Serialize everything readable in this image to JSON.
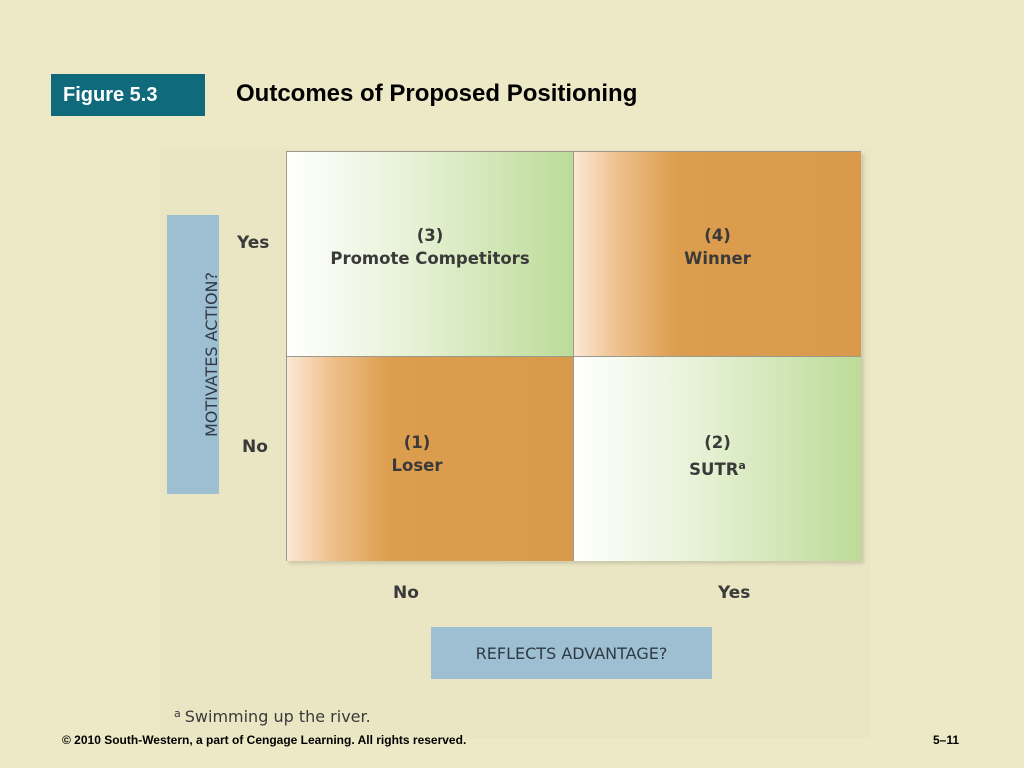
{
  "header": {
    "figure_label": "Figure 5.3",
    "title": "Outcomes of Proposed Positioning"
  },
  "matrix": {
    "y_axis_label": "MOTIVATES ACTION?",
    "y_ticks": {
      "top": "Yes",
      "bottom": "No"
    },
    "x_axis_label": "REFLECTS ADVANTAGE?",
    "x_ticks": {
      "left": "No",
      "right": "Yes"
    },
    "quadrants": {
      "top_left": {
        "number": "(3)",
        "label": "Promote Competitors",
        "superscript": ""
      },
      "top_right": {
        "number": "(4)",
        "label": "Winner",
        "superscript": ""
      },
      "bottom_left": {
        "number": "(1)",
        "label": "Loser",
        "superscript": ""
      },
      "bottom_right": {
        "number": "(2)",
        "label": "SUTR",
        "superscript": "a"
      }
    },
    "colors": {
      "green": "#bcdc98",
      "orange": "#d99a4c",
      "axis_box": "#9ebfd2"
    }
  },
  "footnote": {
    "marker": "a",
    "text": "Swimming up the river."
  },
  "footer": {
    "copyright": "© 2010 South-Western, a part of Cengage Learning. All rights reserved.",
    "page": "5–11"
  }
}
